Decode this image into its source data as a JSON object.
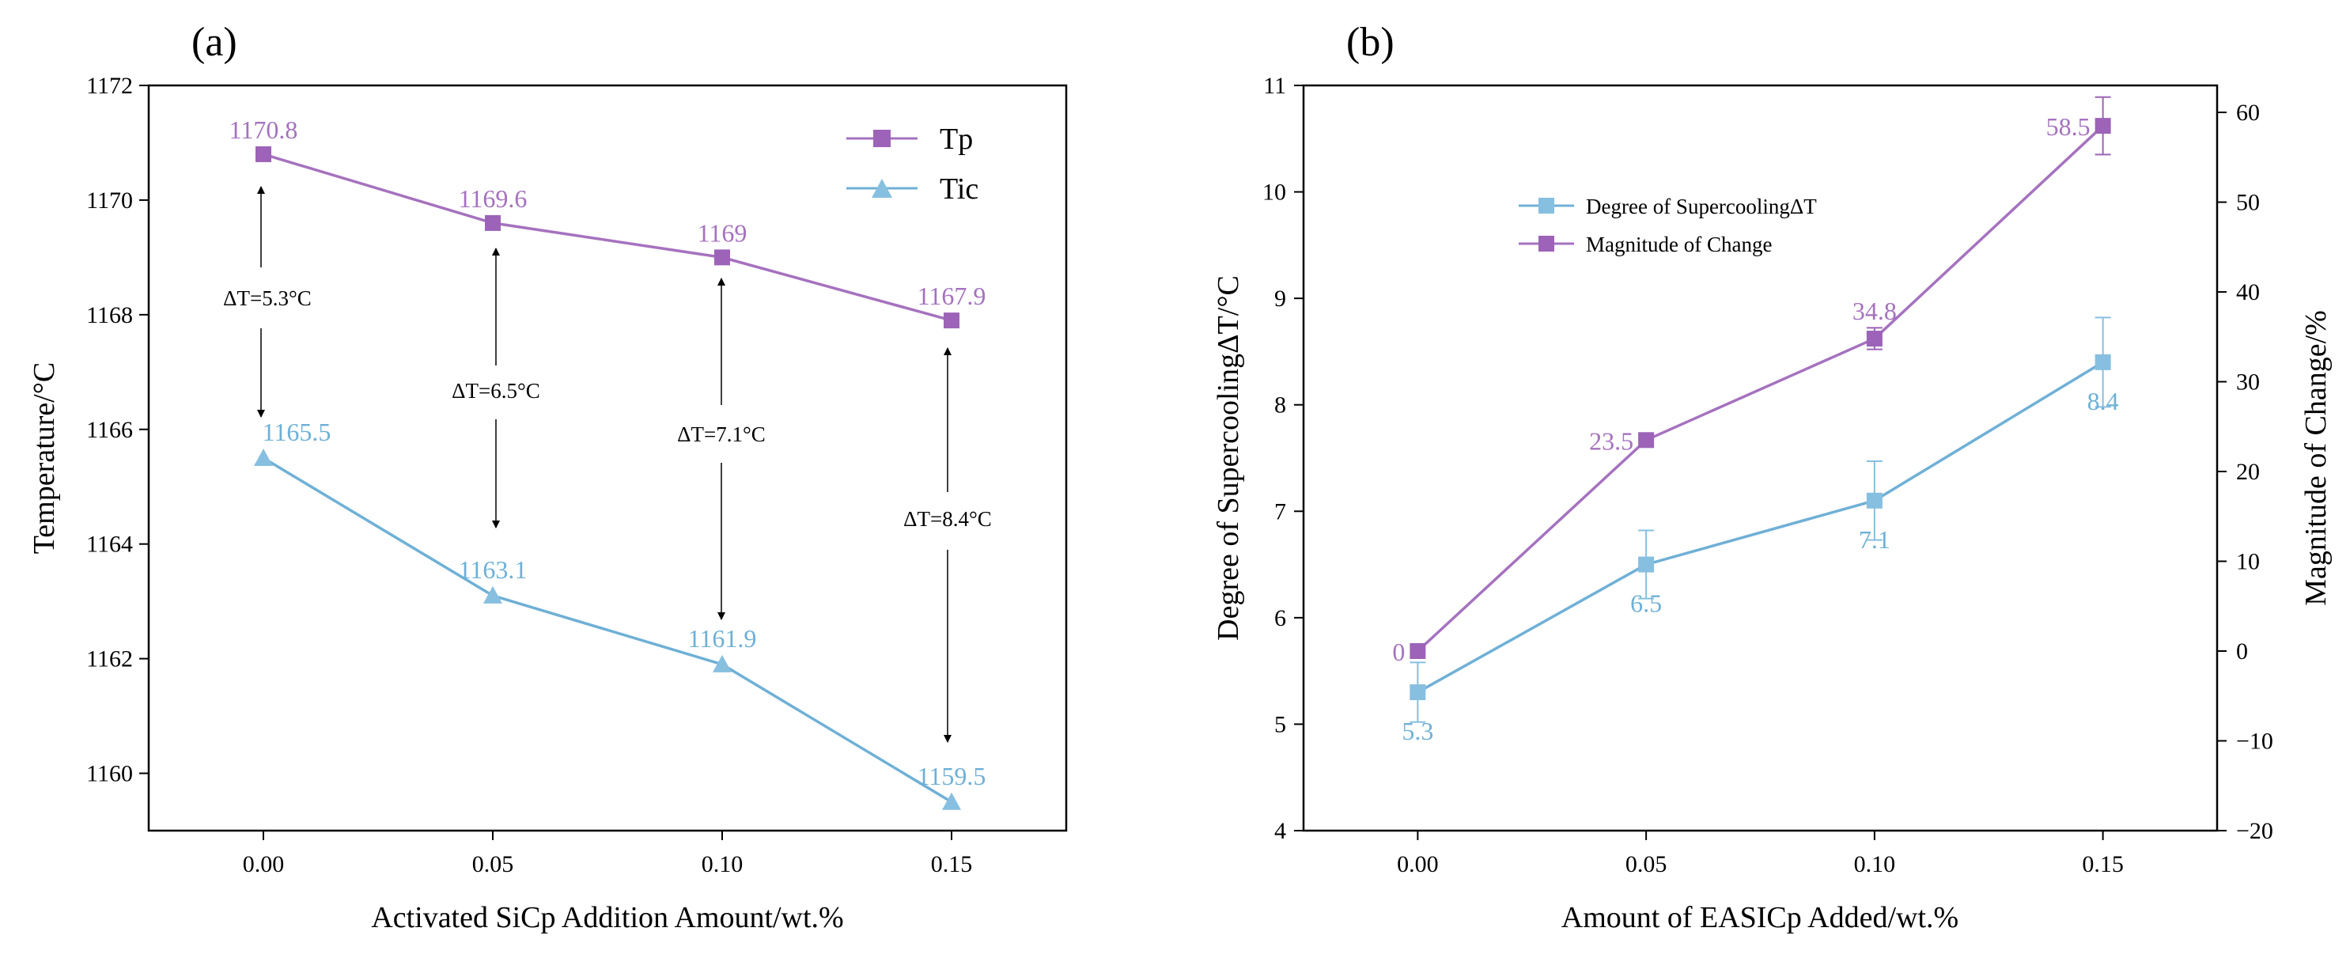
{
  "colors": {
    "purple": "#a572bf",
    "blue": "#6fb0d6",
    "purple_marker": "#9c63b8",
    "blue_marker": "#87bfe0"
  },
  "chart_data": [
    {
      "type": "line",
      "panel_label": "(a)",
      "xlabel": "Activated SiCp Addition Amount/wt.%",
      "ylabel": "Temperature/°C",
      "x": [
        0.0,
        0.05,
        0.1,
        0.15
      ],
      "xticks": [
        "0.00",
        "0.05",
        "0.10",
        "0.15"
      ],
      "xlim": [
        -0.025,
        0.175
      ],
      "ylim": [
        1159,
        1172
      ],
      "yticks": [
        1160,
        1162,
        1164,
        1166,
        1168,
        1170,
        1172
      ],
      "legend_position": "top-right",
      "series": [
        {
          "name": "Tp",
          "values": [
            1170.8,
            1169.6,
            1169.0,
            1167.9
          ],
          "labels": [
            "1170.8",
            "1169.6",
            "1169",
            "1167.9"
          ],
          "marker": "square"
        },
        {
          "name": "Tic",
          "values": [
            1165.5,
            1163.1,
            1161.9,
            1159.5
          ],
          "labels": [
            "1165.5",
            "1163.1",
            "1161.9",
            "1159.5"
          ],
          "marker": "triangle"
        }
      ],
      "annotations": [
        "ΔT=5.3°C",
        "ΔT=6.5°C",
        "ΔT=7.1°C",
        "ΔT=8.4°C"
      ]
    },
    {
      "type": "line",
      "panel_label": "(b)",
      "xlabel": "Amount of EASICp Added/wt.%",
      "ylabel": "Degree of SupercoolingΔT/°C",
      "y2label": "Magnitude of Change/%",
      "x": [
        0.0,
        0.05,
        0.1,
        0.15
      ],
      "xticks": [
        "0.00",
        "0.05",
        "0.10",
        "0.15"
      ],
      "xlim": [
        -0.025,
        0.175
      ],
      "ylim": [
        4,
        11
      ],
      "yticks": [
        4,
        5,
        6,
        7,
        8,
        9,
        10,
        11
      ],
      "y2lim": [
        -20,
        63
      ],
      "y2ticks": [
        -20,
        -10,
        0,
        10,
        20,
        30,
        40,
        50,
        60
      ],
      "legend_position": "top-left",
      "series": [
        {
          "name": "Degree of SupercoolingΔT",
          "axis": "left",
          "values": [
            5.3,
            6.5,
            7.1,
            8.4
          ],
          "labels": [
            "5.3",
            "6.5",
            "7.1",
            "8.4"
          ],
          "error": [
            0.28,
            0.32,
            0.37,
            0.42
          ]
        },
        {
          "name": "Magnitude of Change",
          "axis": "right",
          "values": [
            0,
            23.5,
            34.8,
            58.5
          ],
          "labels": [
            "0",
            "23.5",
            "34.8",
            "58.5"
          ],
          "error": [
            0,
            0,
            1.2,
            3.2
          ]
        }
      ]
    }
  ]
}
